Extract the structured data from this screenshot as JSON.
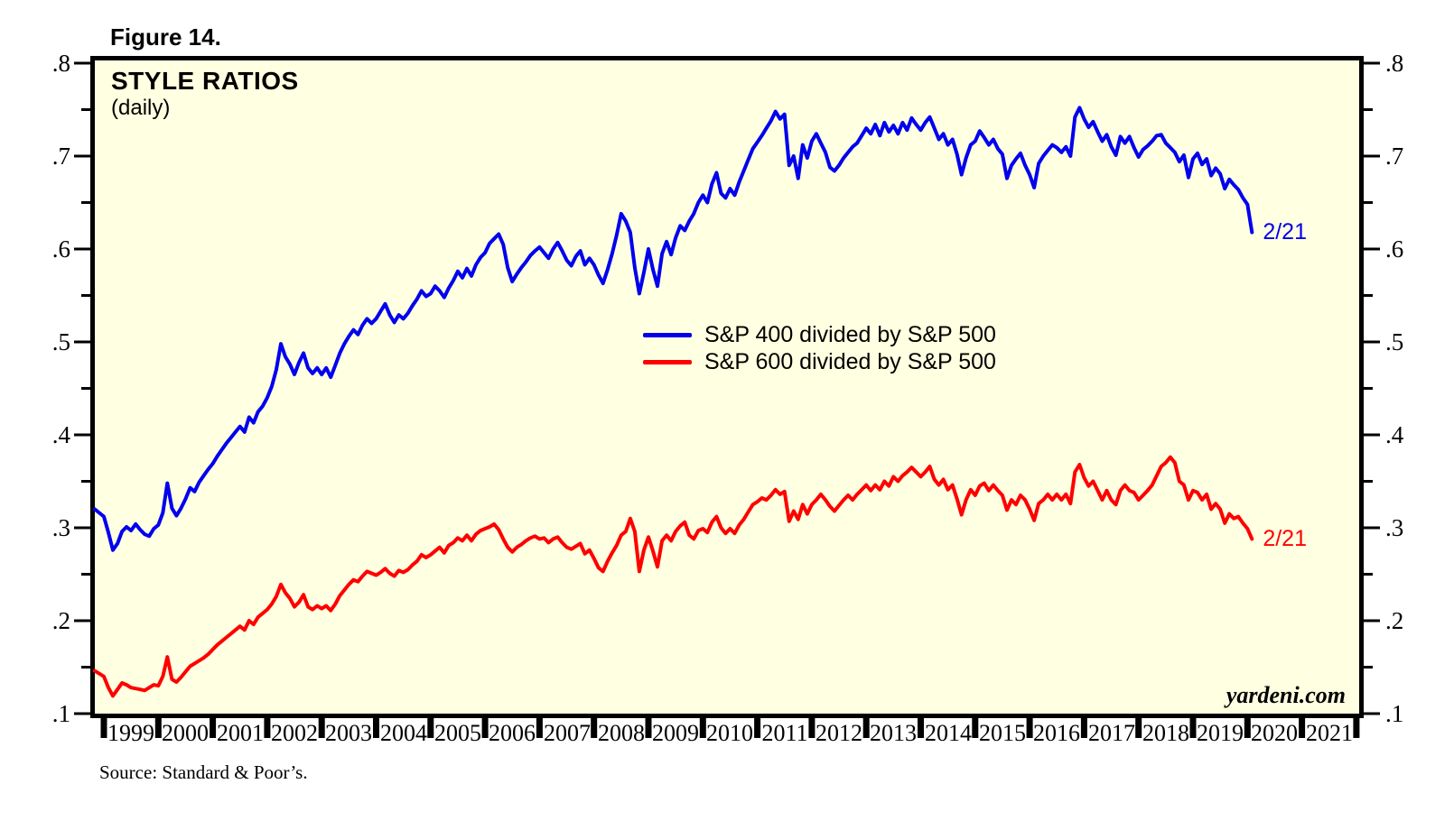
{
  "figure_label": "Figure 14.",
  "chart": {
    "title": "STYLE RATIOS",
    "subtitle": "(daily)",
    "watermark": "yardeni.com",
    "source": "Source: Standard & Poor’s.",
    "colors": {
      "plot_bg": "#FFFFE1",
      "border": "#000000",
      "series1": "#0000EE",
      "series2": "#FF0000"
    }
  },
  "chart_data": {
    "type": "line",
    "title": "STYLE RATIOS",
    "subtitle": "(daily)",
    "grid": false,
    "legend_position": "center",
    "legend": [
      {
        "label": "S&P 400 divided by S&P 500",
        "color": "#0000EE"
      },
      {
        "label": "S&P 600 divided by S&P 500",
        "color": "#FF0000"
      }
    ],
    "y_axis": {
      "min": 0.1,
      "max": 0.8,
      "tick_labels": [
        ".8",
        ".7",
        ".6",
        ".5",
        ".4",
        ".3",
        ".2",
        ".1"
      ],
      "tick_values": [
        0.8,
        0.7,
        0.6,
        0.5,
        0.4,
        0.3,
        0.2,
        0.1
      ],
      "minor_tick_values": [
        0.75,
        0.65,
        0.55,
        0.45,
        0.35,
        0.25,
        0.15
      ]
    },
    "x_axis": {
      "boundary_start": 1999,
      "boundary_count": 24,
      "year_labels": [
        "1999",
        "2000",
        "2001",
        "2002",
        "2003",
        "2004",
        "2005",
        "2006",
        "2007",
        "2008",
        "2009",
        "2010",
        "2011",
        "2012",
        "2013",
        "2014",
        "2015",
        "2016",
        "2017",
        "2018",
        "2019",
        "2020",
        "2021"
      ]
    },
    "series": [
      {
        "name": "S&P 400 divided by S&P 500",
        "color": "#0000EE",
        "end_label": "2/21",
        "start_year": 1998.8333,
        "step_years": 0.0833333,
        "values": [
          0.32,
          0.316,
          0.312,
          0.295,
          0.276,
          0.283,
          0.296,
          0.301,
          0.297,
          0.304,
          0.298,
          0.293,
          0.291,
          0.299,
          0.303,
          0.316,
          0.348,
          0.321,
          0.313,
          0.321,
          0.331,
          0.343,
          0.339,
          0.349,
          0.356,
          0.363,
          0.369,
          0.377,
          0.384,
          0.391,
          0.397,
          0.403,
          0.409,
          0.403,
          0.419,
          0.413,
          0.425,
          0.431,
          0.44,
          0.452,
          0.47,
          0.498,
          0.484,
          0.476,
          0.465,
          0.478,
          0.488,
          0.472,
          0.466,
          0.472,
          0.465,
          0.472,
          0.462,
          0.475,
          0.488,
          0.498,
          0.506,
          0.513,
          0.508,
          0.518,
          0.525,
          0.52,
          0.525,
          0.533,
          0.541,
          0.529,
          0.521,
          0.529,
          0.525,
          0.531,
          0.539,
          0.546,
          0.555,
          0.549,
          0.552,
          0.56,
          0.555,
          0.548,
          0.558,
          0.566,
          0.576,
          0.569,
          0.579,
          0.571,
          0.583,
          0.591,
          0.596,
          0.606,
          0.611,
          0.616,
          0.605,
          0.58,
          0.565,
          0.573,
          0.58,
          0.586,
          0.593,
          0.598,
          0.602,
          0.596,
          0.59,
          0.6,
          0.607,
          0.598,
          0.588,
          0.582,
          0.592,
          0.598,
          0.583,
          0.59,
          0.583,
          0.572,
          0.563,
          0.578,
          0.595,
          0.615,
          0.638,
          0.63,
          0.618,
          0.58,
          0.552,
          0.575,
          0.6,
          0.578,
          0.56,
          0.595,
          0.608,
          0.594,
          0.612,
          0.625,
          0.62,
          0.63,
          0.638,
          0.65,
          0.658,
          0.65,
          0.67,
          0.682,
          0.66,
          0.655,
          0.665,
          0.658,
          0.672,
          0.684,
          0.696,
          0.708,
          0.715,
          0.722,
          0.73,
          0.738,
          0.748,
          0.74,
          0.745,
          0.69,
          0.7,
          0.676,
          0.712,
          0.698,
          0.716,
          0.724,
          0.714,
          0.704,
          0.688,
          0.684,
          0.69,
          0.698,
          0.704,
          0.71,
          0.714,
          0.722,
          0.73,
          0.724,
          0.734,
          0.722,
          0.736,
          0.726,
          0.733,
          0.724,
          0.736,
          0.728,
          0.741,
          0.734,
          0.728,
          0.736,
          0.742,
          0.73,
          0.718,
          0.724,
          0.712,
          0.718,
          0.702,
          0.68,
          0.698,
          0.712,
          0.716,
          0.727,
          0.72,
          0.712,
          0.718,
          0.708,
          0.702,
          0.676,
          0.69,
          0.697,
          0.703,
          0.69,
          0.68,
          0.666,
          0.692,
          0.7,
          0.706,
          0.712,
          0.709,
          0.704,
          0.71,
          0.7,
          0.742,
          0.752,
          0.74,
          0.731,
          0.737,
          0.726,
          0.716,
          0.723,
          0.71,
          0.701,
          0.721,
          0.714,
          0.721,
          0.709,
          0.699,
          0.707,
          0.711,
          0.716,
          0.722,
          0.723,
          0.714,
          0.709,
          0.704,
          0.694,
          0.701,
          0.677,
          0.697,
          0.703,
          0.691,
          0.697,
          0.679,
          0.687,
          0.681,
          0.665,
          0.675,
          0.669,
          0.664,
          0.655,
          0.648,
          0.618
        ]
      },
      {
        "name": "S&P 600 divided by S&P 500",
        "color": "#FF0000",
        "end_label": "2/21",
        "start_year": 1998.8333,
        "step_years": 0.0833333,
        "values": [
          0.146,
          0.143,
          0.14,
          0.128,
          0.119,
          0.126,
          0.133,
          0.131,
          0.128,
          0.127,
          0.126,
          0.125,
          0.128,
          0.131,
          0.13,
          0.14,
          0.161,
          0.137,
          0.134,
          0.139,
          0.145,
          0.151,
          0.154,
          0.157,
          0.16,
          0.164,
          0.169,
          0.174,
          0.178,
          0.182,
          0.186,
          0.19,
          0.194,
          0.19,
          0.2,
          0.196,
          0.204,
          0.208,
          0.212,
          0.218,
          0.226,
          0.239,
          0.23,
          0.224,
          0.215,
          0.22,
          0.228,
          0.215,
          0.212,
          0.216,
          0.213,
          0.216,
          0.211,
          0.218,
          0.227,
          0.233,
          0.239,
          0.244,
          0.242,
          0.248,
          0.253,
          0.251,
          0.249,
          0.252,
          0.256,
          0.251,
          0.248,
          0.254,
          0.252,
          0.255,
          0.26,
          0.264,
          0.271,
          0.268,
          0.271,
          0.275,
          0.279,
          0.273,
          0.281,
          0.284,
          0.289,
          0.286,
          0.292,
          0.286,
          0.293,
          0.297,
          0.299,
          0.301,
          0.304,
          0.298,
          0.288,
          0.279,
          0.274,
          0.279,
          0.282,
          0.286,
          0.289,
          0.291,
          0.288,
          0.289,
          0.284,
          0.288,
          0.29,
          0.284,
          0.279,
          0.277,
          0.28,
          0.283,
          0.272,
          0.276,
          0.267,
          0.257,
          0.253,
          0.264,
          0.273,
          0.281,
          0.292,
          0.296,
          0.31,
          0.296,
          0.253,
          0.276,
          0.29,
          0.275,
          0.258,
          0.286,
          0.292,
          0.286,
          0.296,
          0.302,
          0.306,
          0.292,
          0.288,
          0.297,
          0.299,
          0.295,
          0.306,
          0.312,
          0.3,
          0.294,
          0.299,
          0.294,
          0.303,
          0.309,
          0.317,
          0.325,
          0.328,
          0.332,
          0.33,
          0.335,
          0.341,
          0.336,
          0.339,
          0.307,
          0.318,
          0.309,
          0.325,
          0.315,
          0.325,
          0.33,
          0.336,
          0.33,
          0.323,
          0.318,
          0.324,
          0.33,
          0.335,
          0.33,
          0.336,
          0.341,
          0.346,
          0.34,
          0.346,
          0.341,
          0.35,
          0.345,
          0.355,
          0.35,
          0.356,
          0.36,
          0.365,
          0.36,
          0.355,
          0.36,
          0.366,
          0.352,
          0.346,
          0.352,
          0.341,
          0.346,
          0.331,
          0.314,
          0.33,
          0.341,
          0.335,
          0.345,
          0.348,
          0.34,
          0.346,
          0.34,
          0.335,
          0.319,
          0.33,
          0.325,
          0.335,
          0.33,
          0.32,
          0.308,
          0.326,
          0.33,
          0.336,
          0.33,
          0.336,
          0.33,
          0.336,
          0.326,
          0.36,
          0.368,
          0.354,
          0.345,
          0.35,
          0.34,
          0.33,
          0.34,
          0.33,
          0.325,
          0.34,
          0.346,
          0.34,
          0.338,
          0.33,
          0.335,
          0.34,
          0.346,
          0.356,
          0.366,
          0.37,
          0.376,
          0.37,
          0.35,
          0.346,
          0.33,
          0.34,
          0.338,
          0.33,
          0.336,
          0.32,
          0.326,
          0.32,
          0.305,
          0.315,
          0.31,
          0.312,
          0.305,
          0.299,
          0.288
        ]
      }
    ]
  }
}
